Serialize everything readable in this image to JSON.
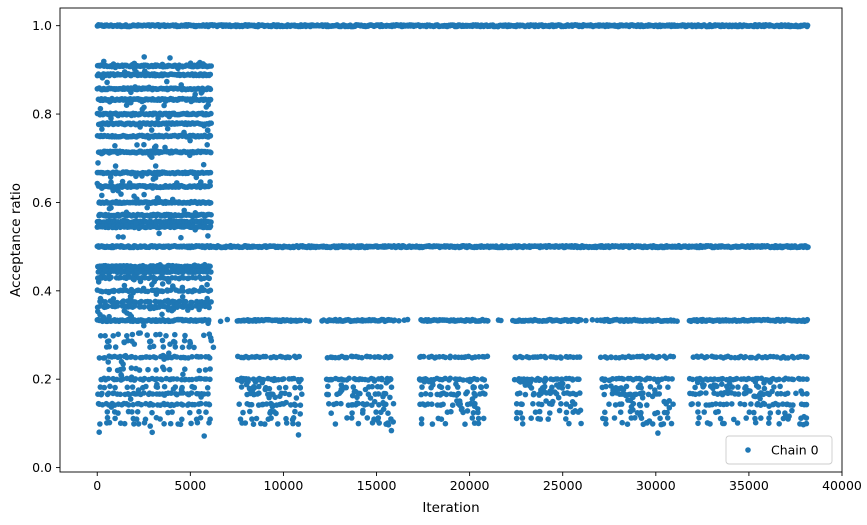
{
  "chart_data": {
    "type": "scatter",
    "title": "",
    "xlabel": "Iteration",
    "ylabel": "Acceptance ratio",
    "xlim": [
      -2000,
      40000
    ],
    "ylim": [
      -0.01,
      1.04
    ],
    "x_ticks": [
      0,
      5000,
      10000,
      15000,
      20000,
      25000,
      30000,
      35000,
      40000
    ],
    "x_tick_labels": [
      "0",
      "5000",
      "10000",
      "15000",
      "20000",
      "25000",
      "30000",
      "35000",
      "40000"
    ],
    "y_ticks": [
      0.0,
      0.2,
      0.4,
      0.6,
      0.8,
      1.0
    ],
    "y_tick_labels": [
      "0.0",
      "0.2",
      "0.4",
      "0.6",
      "0.8",
      "1.0"
    ],
    "grid": false,
    "legend_position": "lower-right",
    "marker_color": "#1f77b4",
    "series": [
      {
        "name": "Chain 0",
        "x_range": [
          0,
          38200
        ],
        "bands": [
          {
            "y": 1.0,
            "x_from": 0,
            "x_to": 38200,
            "density": "continuous"
          },
          {
            "y": 0.909,
            "x_from": 0,
            "x_to": 6100,
            "density": "dense"
          },
          {
            "y": 0.889,
            "x_from": 0,
            "x_to": 6100,
            "density": "dense"
          },
          {
            "y": 0.857,
            "x_from": 0,
            "x_to": 6100,
            "density": "dense"
          },
          {
            "y": 0.833,
            "x_from": 0,
            "x_to": 6100,
            "density": "dense"
          },
          {
            "y": 0.8,
            "x_from": 0,
            "x_to": 6100,
            "density": "dense"
          },
          {
            "y": 0.778,
            "x_from": 0,
            "x_to": 6100,
            "density": "dense"
          },
          {
            "y": 0.75,
            "x_from": 0,
            "x_to": 6100,
            "density": "dense"
          },
          {
            "y": 0.714,
            "x_from": 0,
            "x_to": 6100,
            "density": "dense"
          },
          {
            "y": 0.667,
            "x_from": 0,
            "x_to": 6100,
            "density": "dense"
          },
          {
            "y": 0.636,
            "x_from": 0,
            "x_to": 6100,
            "density": "dense"
          },
          {
            "y": 0.6,
            "x_from": 0,
            "x_to": 6100,
            "density": "dense"
          },
          {
            "y": 0.571,
            "x_from": 0,
            "x_to": 6100,
            "density": "dense"
          },
          {
            "y": 0.556,
            "x_from": 0,
            "x_to": 6100,
            "density": "dense"
          },
          {
            "y": 0.545,
            "x_from": 0,
            "x_to": 6100,
            "density": "dense"
          },
          {
            "y": 0.5,
            "x_from": 0,
            "x_to": 38200,
            "density": "continuous"
          },
          {
            "y": 0.455,
            "x_from": 0,
            "x_to": 6100,
            "density": "dense"
          },
          {
            "y": 0.444,
            "x_from": 0,
            "x_to": 6100,
            "density": "dense"
          },
          {
            "y": 0.429,
            "x_from": 0,
            "x_to": 6100,
            "density": "medium"
          },
          {
            "y": 0.4,
            "x_from": 0,
            "x_to": 6100,
            "density": "medium"
          },
          {
            "y": 0.375,
            "x_from": 0,
            "x_to": 6100,
            "density": "medium"
          },
          {
            "y": 0.364,
            "x_from": 0,
            "x_to": 6100,
            "density": "medium"
          },
          {
            "y": 0.333,
            "x_from": 0,
            "x_to": 38200,
            "density": "dense"
          },
          {
            "y": 0.3,
            "x_from": 0,
            "x_to": 6100,
            "density": "sparse"
          },
          {
            "y": 0.286,
            "x_from": 0,
            "x_to": 6100,
            "density": "sparse"
          },
          {
            "y": 0.273,
            "x_from": 0,
            "x_to": 6100,
            "density": "sparse"
          },
          {
            "y": 0.25,
            "x_from": 0,
            "x_to": 38200,
            "density": "medium"
          },
          {
            "y": 0.222,
            "x_from": 0,
            "x_to": 6100,
            "density": "sparse"
          },
          {
            "y": 0.2,
            "x_from": 0,
            "x_to": 38200,
            "density": "medium"
          },
          {
            "y": 0.182,
            "x_from": 0,
            "x_to": 38200,
            "density": "sparse"
          },
          {
            "y": 0.167,
            "x_from": 0,
            "x_to": 38200,
            "density": "medium"
          },
          {
            "y": 0.143,
            "x_from": 0,
            "x_to": 38200,
            "density": "medium"
          },
          {
            "y": 0.125,
            "x_from": 0,
            "x_to": 38200,
            "density": "sparse"
          },
          {
            "y": 0.111,
            "x_from": 0,
            "x_to": 38200,
            "density": "sparse"
          },
          {
            "y": 0.1,
            "x_from": 0,
            "x_to": 38200,
            "density": "sparse"
          }
        ],
        "low_value_clusters": [
          {
            "x_from": 7500,
            "x_to": 11000,
            "y_min": 0.06
          },
          {
            "x_from": 12300,
            "x_to": 16000,
            "y_min": 0.06
          },
          {
            "x_from": 17300,
            "x_to": 21000,
            "y_min": 0.07
          },
          {
            "x_from": 22400,
            "x_to": 26000,
            "y_min": 0.09
          },
          {
            "x_from": 27000,
            "x_to": 31000,
            "y_min": 0.04
          },
          {
            "x_from": 31800,
            "x_to": 38200,
            "y_min": 0.09
          }
        ]
      }
    ]
  }
}
